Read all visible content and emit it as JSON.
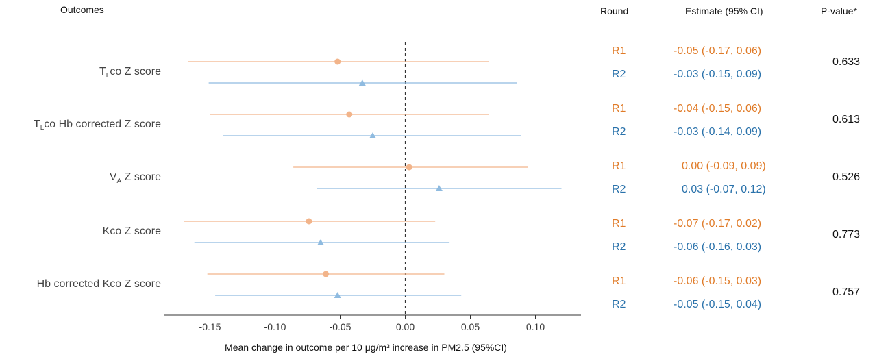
{
  "headers": {
    "outcomes": "Outcomes",
    "round": "Round",
    "estimate": "Estimate (95% CI)",
    "pvalue": "P-value*"
  },
  "outcomes": [
    {
      "label_main": "T",
      "label_sub": "L",
      "label_rest": "co Z score",
      "pvalue": "0.633"
    },
    {
      "label_main": "T",
      "label_sub": "L",
      "label_rest": "co Hb corrected Z score",
      "pvalue": "0.613"
    },
    {
      "label_main": "V",
      "label_sub": "A",
      "label_rest": " Z score",
      "pvalue": "0.526"
    },
    {
      "label_main": "Kco Z score",
      "label_sub": "",
      "label_rest": "",
      "pvalue": "0.773"
    },
    {
      "label_main": "Hb corrected Kco Z score",
      "label_sub": "",
      "label_rest": "",
      "pvalue": "0.757"
    }
  ],
  "rows": [
    {
      "round": "R1",
      "estimate_text": "-0.05 (-0.17, 0.06)"
    },
    {
      "round": "R2",
      "estimate_text": "-0.03 (-0.15, 0.09)"
    },
    {
      "round": "R1",
      "estimate_text": "-0.04 (-0.15, 0.06)"
    },
    {
      "round": "R2",
      "estimate_text": "-0.03 (-0.14, 0.09)"
    },
    {
      "round": "R1",
      "estimate_text": "0.00 (-0.09, 0.09)"
    },
    {
      "round": "R2",
      "estimate_text": "0.03 (-0.07, 0.12)"
    },
    {
      "round": "R1",
      "estimate_text": "-0.07 (-0.17, 0.02)"
    },
    {
      "round": "R2",
      "estimate_text": "-0.06 (-0.16, 0.03)"
    },
    {
      "round": "R1",
      "estimate_text": "-0.06 (-0.15, 0.03)"
    },
    {
      "round": "R2",
      "estimate_text": "-0.05 (-0.15, 0.04)"
    }
  ],
  "colors": {
    "R1": "#f2b48a",
    "R2": "#8fbbe0",
    "R1_text": "#e07b28",
    "R2_text": "#2a72ab"
  },
  "chart_data": {
    "type": "scatter",
    "subtype": "forest-plot",
    "xlabel": "Mean change in outcome per 10 μg/m³ increase in  PM2.5 (95%CI)",
    "xlim": [
      -0.185,
      0.135
    ],
    "xticks": [
      -0.15,
      -0.1,
      -0.05,
      0.0,
      0.05,
      0.1
    ],
    "xtick_labels": [
      "-0.15",
      "-0.10",
      "-0.05",
      "0.00",
      "0.05",
      "0.10"
    ],
    "reference_line": 0,
    "series": [
      {
        "name": "R1",
        "marker": "circle",
        "estimate": [
          -0.052,
          -0.043,
          0.003,
          -0.074,
          -0.061
        ],
        "lower": [
          -0.167,
          -0.15,
          -0.086,
          -0.17,
          -0.152
        ],
        "upper": [
          0.064,
          0.064,
          0.094,
          0.023,
          0.03
        ]
      },
      {
        "name": "R2",
        "marker": "triangle",
        "estimate": [
          -0.033,
          -0.025,
          0.026,
          -0.065,
          -0.052
        ],
        "lower": [
          -0.151,
          -0.14,
          -0.068,
          -0.162,
          -0.146
        ],
        "upper": [
          0.086,
          0.089,
          0.12,
          0.034,
          0.043
        ]
      }
    ]
  }
}
